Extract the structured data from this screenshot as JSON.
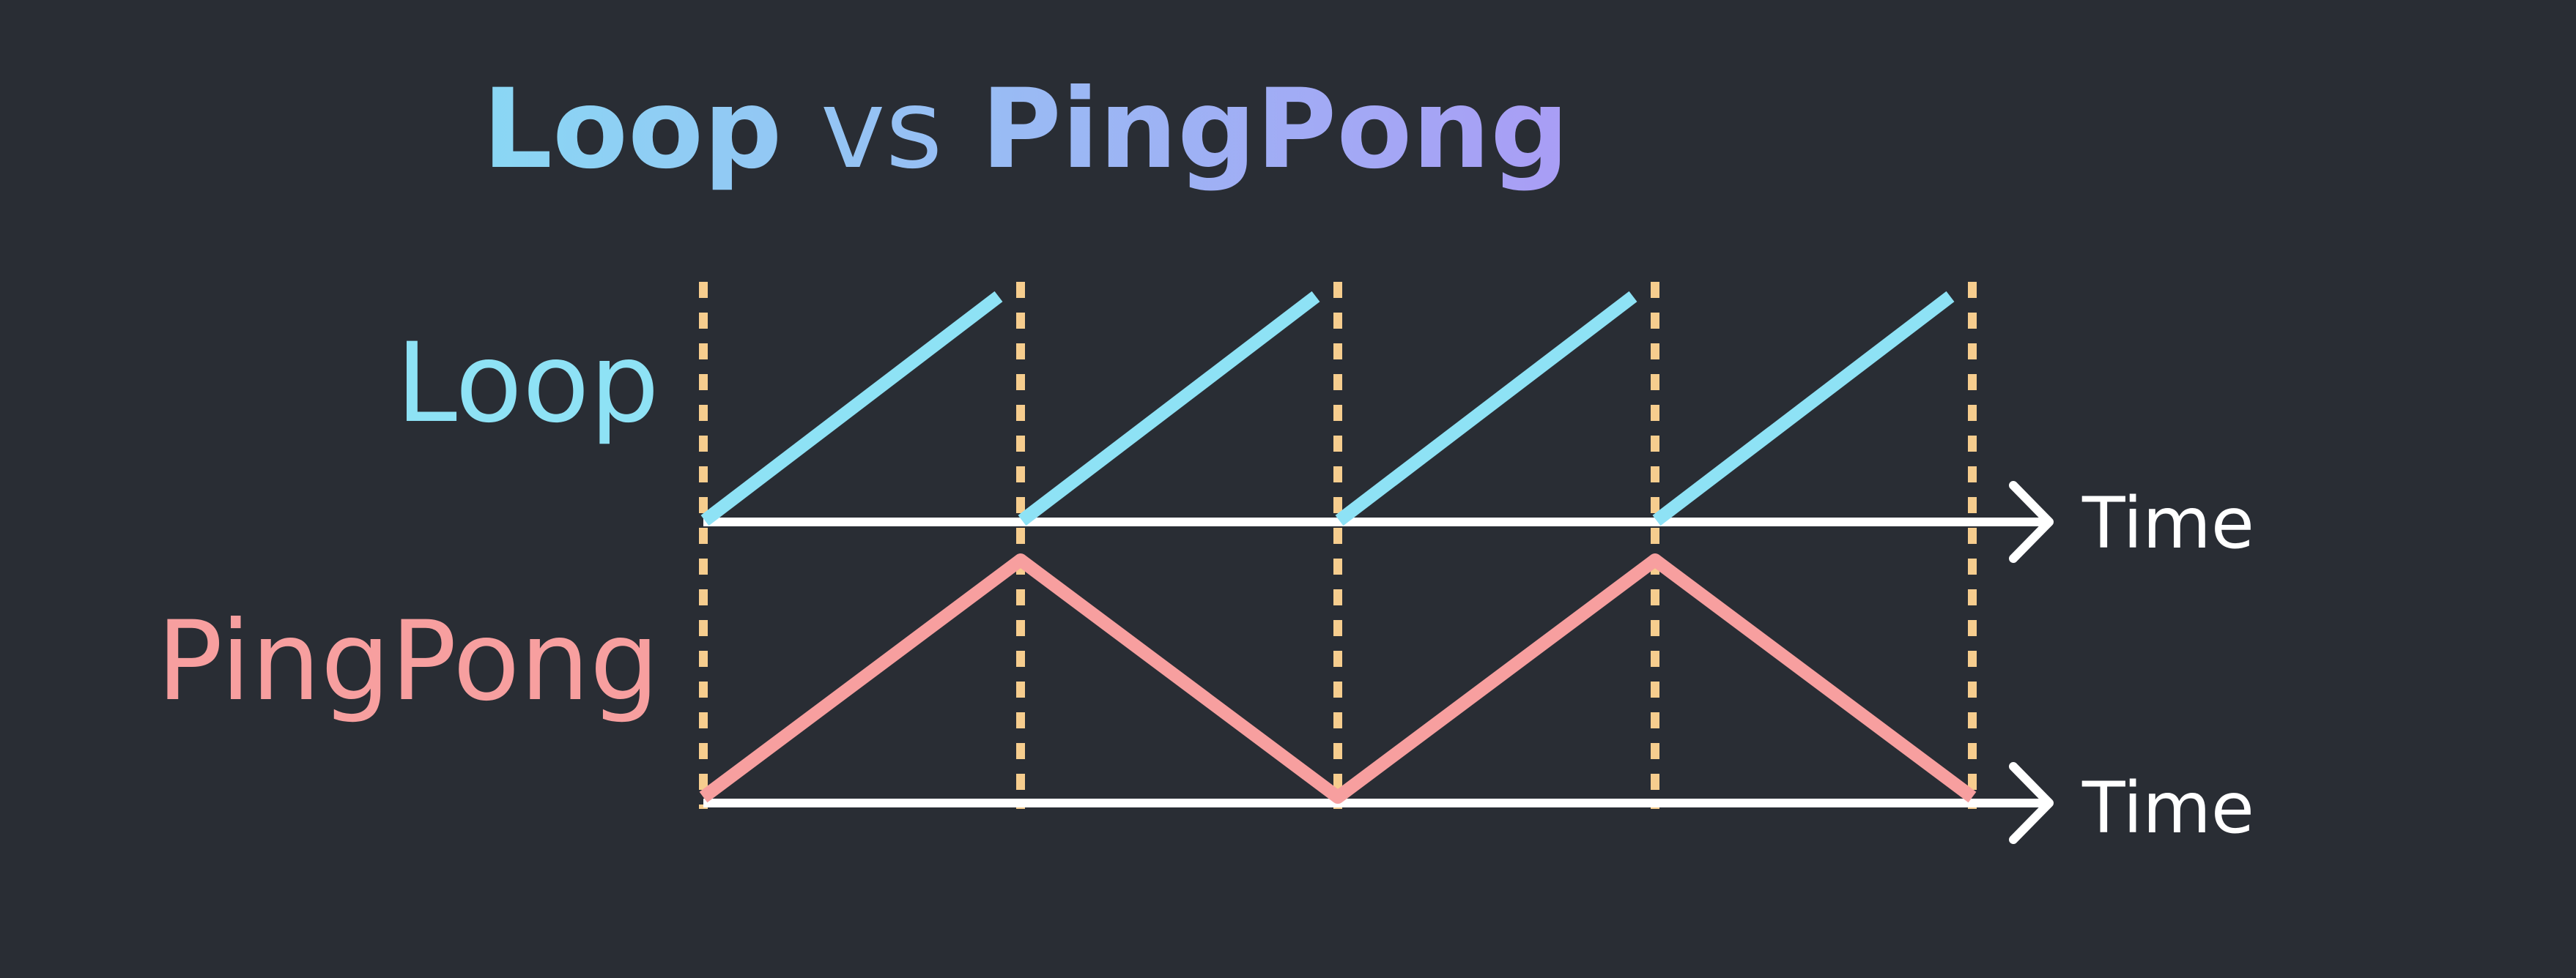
{
  "title": {
    "left": "Loop",
    "middle": "vs",
    "right": "PingPong",
    "gradient": [
      "#8ad7f4",
      "#a99df5"
    ]
  },
  "rows": [
    {
      "label": "Loop",
      "axis_label": "Time",
      "color": "#8ee2f5",
      "values": [
        [
          0,
          0
        ],
        [
          1,
          1
        ],
        [
          1,
          0
        ],
        [
          2,
          1
        ],
        [
          2,
          0
        ],
        [
          3,
          1
        ],
        [
          3,
          0
        ],
        [
          4,
          1
        ]
      ]
    },
    {
      "label": "PingPong",
      "axis_label": "Time",
      "color": "#f79f9f",
      "values": [
        [
          0,
          0
        ],
        [
          1,
          1
        ],
        [
          2,
          0
        ],
        [
          3,
          1
        ],
        [
          4,
          0
        ]
      ]
    }
  ],
  "cycle_boundaries": [
    0,
    1,
    2,
    3,
    4
  ],
  "colors": {
    "background": "#292d34",
    "axis": "#ffffff",
    "boundary": "#f6cd8e"
  }
}
